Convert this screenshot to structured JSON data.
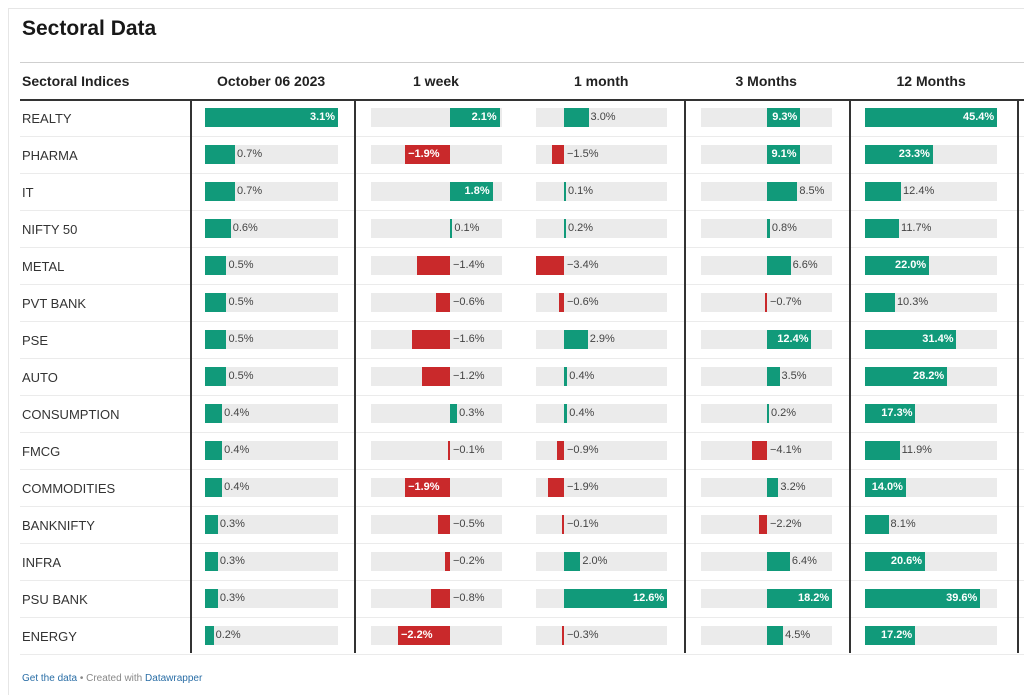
{
  "title": "Sectoral Data",
  "header": {
    "label": "Sectoral Indices",
    "columns": [
      "October 06 2023",
      "1 week",
      "1 month",
      "3 Months",
      "12 Months"
    ]
  },
  "colors": {
    "positive": "#119a7a",
    "negative": "#c9292b",
    "track": "#ebebeb"
  },
  "footer": {
    "get_data": "Get the data",
    "separator": " • Created with ",
    "created_with": "Datawrapper"
  },
  "chart_data": {
    "type": "table",
    "columns": [
      "October 06 2023",
      "1 week",
      "1 month",
      "3 Months",
      "12 Months"
    ],
    "unit": "%",
    "rows": [
      {
        "name": "REALTY",
        "values": [
          3.1,
          2.1,
          3.0,
          9.3,
          45.4
        ]
      },
      {
        "name": "PHARMA",
        "values": [
          0.7,
          -1.9,
          -1.5,
          9.1,
          23.3
        ]
      },
      {
        "name": "IT",
        "values": [
          0.7,
          1.8,
          0.1,
          8.5,
          12.4
        ]
      },
      {
        "name": "NIFTY 50",
        "values": [
          0.6,
          0.1,
          0.2,
          0.8,
          11.7
        ]
      },
      {
        "name": "METAL",
        "values": [
          0.5,
          -1.4,
          -3.4,
          6.6,
          22.0
        ]
      },
      {
        "name": "PVT BANK",
        "values": [
          0.5,
          -0.6,
          -0.6,
          -0.7,
          10.3
        ]
      },
      {
        "name": "PSE",
        "values": [
          0.5,
          -1.6,
          2.9,
          12.4,
          31.4
        ]
      },
      {
        "name": "AUTO",
        "values": [
          0.5,
          -1.2,
          0.4,
          3.5,
          28.2
        ]
      },
      {
        "name": "CONSUMPTION",
        "values": [
          0.4,
          0.3,
          0.4,
          0.2,
          17.3
        ]
      },
      {
        "name": "FMCG",
        "values": [
          0.4,
          -0.1,
          -0.9,
          -4.1,
          11.9
        ]
      },
      {
        "name": "COMMODITIES",
        "values": [
          0.4,
          -1.9,
          -1.9,
          3.2,
          14.0
        ]
      },
      {
        "name": "BANKNIFTY",
        "values": [
          0.3,
          -0.5,
          -0.1,
          -2.2,
          8.1
        ]
      },
      {
        "name": "INFRA",
        "values": [
          0.3,
          -0.2,
          2.0,
          6.4,
          20.6
        ]
      },
      {
        "name": "PSU BANK",
        "values": [
          0.3,
          -0.8,
          12.6,
          18.2,
          39.6
        ]
      },
      {
        "name": "ENERGY",
        "values": [
          0.2,
          -2.2,
          -0.3,
          4.5,
          17.2
        ]
      }
    ]
  }
}
